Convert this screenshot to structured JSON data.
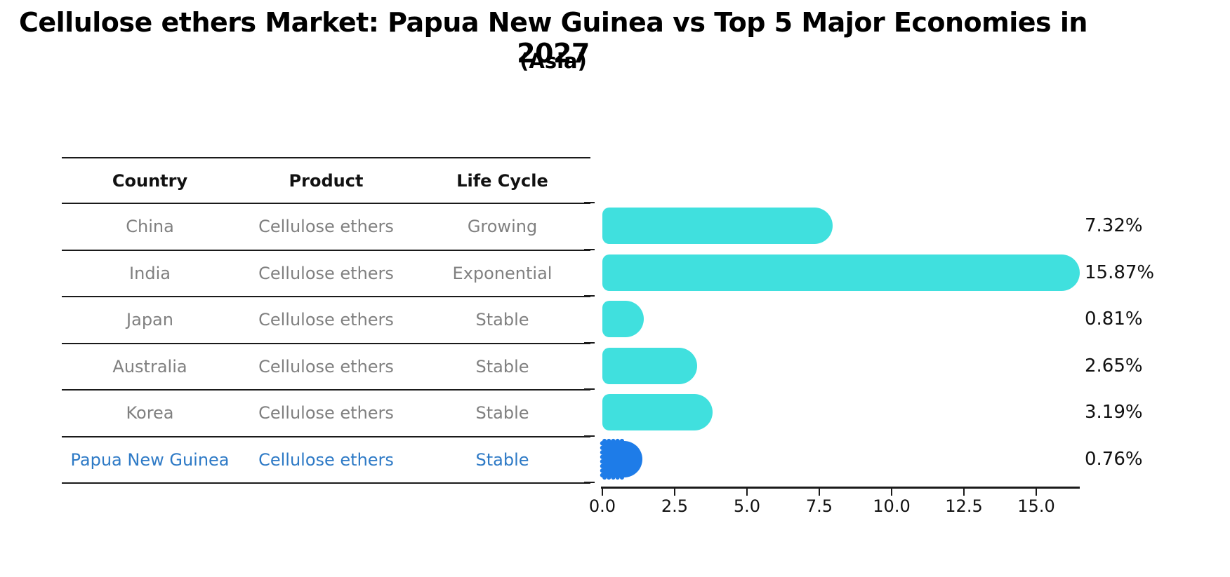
{
  "title": "Cellulose ethers Market: Papua New Guinea vs Top 5 Major Economies in 2027",
  "subtitle": "(Asia)",
  "table": {
    "columns": [
      "Country",
      "Product",
      "Life Cycle"
    ],
    "rows": [
      {
        "country": "China",
        "product": "Cellulose ethers",
        "life_cycle": "Growing",
        "highlighted": false
      },
      {
        "country": "India",
        "product": "Cellulose ethers",
        "life_cycle": "Exponential",
        "highlighted": false
      },
      {
        "country": "Japan",
        "product": "Cellulose ethers",
        "life_cycle": "Stable",
        "highlighted": false
      },
      {
        "country": "Australia",
        "product": "Cellulose ethers",
        "life_cycle": "Stable",
        "highlighted": false
      },
      {
        "country": "Korea",
        "product": "Cellulose ethers",
        "life_cycle": "Stable",
        "highlighted": false
      },
      {
        "country": "Papua New Guinea",
        "product": "Cellulose ethers",
        "life_cycle": "Stable",
        "highlighted": true
      }
    ]
  },
  "chart_data": {
    "type": "bar",
    "orientation": "horizontal",
    "categories": [
      "China",
      "India",
      "Japan",
      "Australia",
      "Korea",
      "Papua New Guinea"
    ],
    "values": [
      7.32,
      15.87,
      0.81,
      2.65,
      3.19,
      0.76
    ],
    "value_labels": [
      "7.32%",
      "15.87%",
      "0.81%",
      "2.65%",
      "3.19%",
      "0.76%"
    ],
    "x_ticks": [
      0.0,
      2.5,
      5.0,
      7.5,
      10.0,
      12.5,
      15.0
    ],
    "x_tick_labels": [
      "0.0",
      "2.5",
      "5.0",
      "7.5",
      "10.0",
      "12.5",
      "15.0"
    ],
    "xlim": [
      0,
      16.5
    ],
    "grid": false,
    "legend": "none",
    "highlight_index": 5,
    "title": "Cellulose ethers Market: Papua New Guinea vs Top 5 Major Economies in 2027",
    "xlabel": "",
    "ylabel": ""
  },
  "colors": {
    "bar_default": "#40E0DE",
    "bar_highlight": "#1E7CE8",
    "row_text": "#808080",
    "highlight_text": "#2E7AC6",
    "header_text": "#111111",
    "axis": "#1a1a1a",
    "value_label_text": "#111111",
    "background": "#ffffff"
  }
}
